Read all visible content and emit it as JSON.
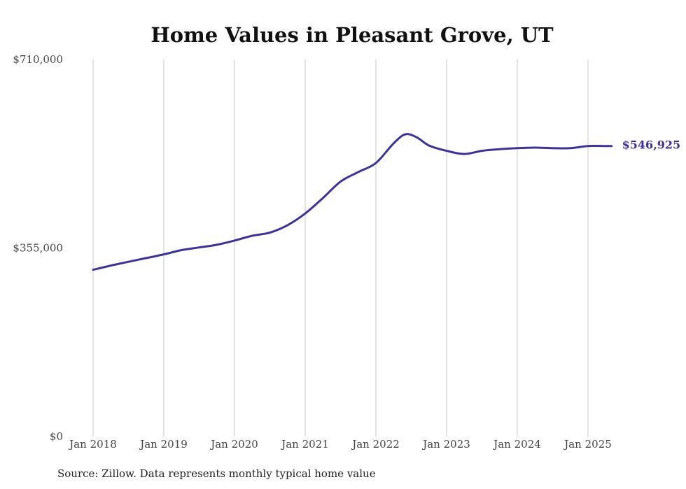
{
  "chart_data": {
    "type": "line",
    "title": "Home Values in Pleasant Grove, UT",
    "xlabel": "",
    "ylabel": "",
    "ylim": [
      0,
      710000
    ],
    "y_ticks": [
      {
        "value": 0,
        "label": "$0"
      },
      {
        "value": 355000,
        "label": "$355,000"
      },
      {
        "value": 710000,
        "label": "$710,000"
      }
    ],
    "x_ticks": [
      {
        "value": "2018-01",
        "label": "Jan 2018"
      },
      {
        "value": "2019-01",
        "label": "Jan 2019"
      },
      {
        "value": "2020-01",
        "label": "Jan 2020"
      },
      {
        "value": "2021-01",
        "label": "Jan 2021"
      },
      {
        "value": "2022-01",
        "label": "Jan 2022"
      },
      {
        "value": "2023-01",
        "label": "Jan 2023"
      },
      {
        "value": "2024-01",
        "label": "Jan 2024"
      },
      {
        "value": "2025-01",
        "label": "Jan 2025"
      }
    ],
    "grid": {
      "vertical": true,
      "horizontal": false
    },
    "series": [
      {
        "color": "#3b3494",
        "end_label": "$546,925",
        "points": [
          [
            "2018-01",
            314000
          ],
          [
            "2018-04",
            322000
          ],
          [
            "2018-07",
            329000
          ],
          [
            "2018-10",
            336000
          ],
          [
            "2019-01",
            343000
          ],
          [
            "2019-04",
            351000
          ],
          [
            "2019-07",
            356000
          ],
          [
            "2019-10",
            361000
          ],
          [
            "2020-01",
            369000
          ],
          [
            "2020-04",
            378000
          ],
          [
            "2020-07",
            384000
          ],
          [
            "2020-10",
            398000
          ],
          [
            "2021-01",
            420000
          ],
          [
            "2021-04",
            449000
          ],
          [
            "2021-07",
            480000
          ],
          [
            "2021-10",
            498000
          ],
          [
            "2022-01",
            515000
          ],
          [
            "2022-04",
            552000
          ],
          [
            "2022-06",
            569000
          ],
          [
            "2022-08",
            563000
          ],
          [
            "2022-10",
            548000
          ],
          [
            "2023-01",
            538000
          ],
          [
            "2023-04",
            532000
          ],
          [
            "2023-07",
            538000
          ],
          [
            "2023-10",
            541000
          ],
          [
            "2024-01",
            543000
          ],
          [
            "2024-04",
            544000
          ],
          [
            "2024-07",
            543000
          ],
          [
            "2024-10",
            543000
          ],
          [
            "2025-01",
            547000
          ],
          [
            "2025-04",
            547000
          ],
          [
            "2025-05",
            546925
          ]
        ]
      }
    ]
  },
  "source_note": "Source: Zillow. Data represents monthly typical home value"
}
